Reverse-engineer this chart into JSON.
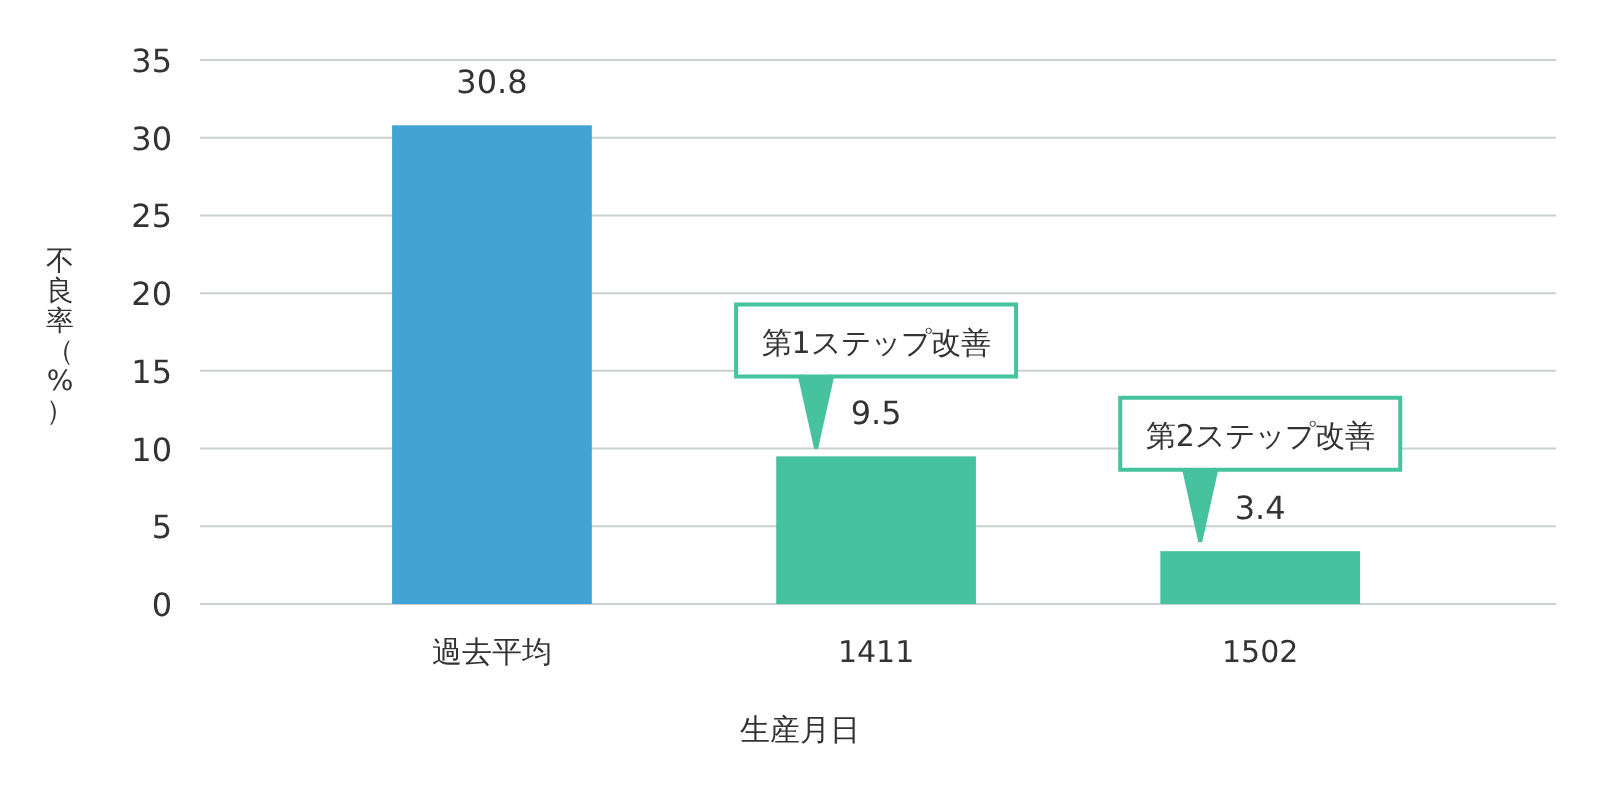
{
  "chart_data": {
    "type": "bar",
    "xlabel": "生産月日",
    "ylabel": "不良率（%）",
    "categories": [
      "過去平均",
      "1411",
      "1502"
    ],
    "values": [
      30.8,
      9.5,
      3.4
    ],
    "colors": [
      "#41a4d4",
      "#47c29e",
      "#47c29e"
    ],
    "ylim": [
      0,
      35
    ],
    "yticks": [
      0,
      5,
      10,
      15,
      20,
      25,
      30,
      35
    ],
    "grid": "y",
    "data_labels": true,
    "annotations": [
      {
        "text": "第1ステップ改善",
        "x": "1411",
        "y": 10
      },
      {
        "text": "第2ステップ改善",
        "x": "1502",
        "y": 4
      }
    ]
  }
}
